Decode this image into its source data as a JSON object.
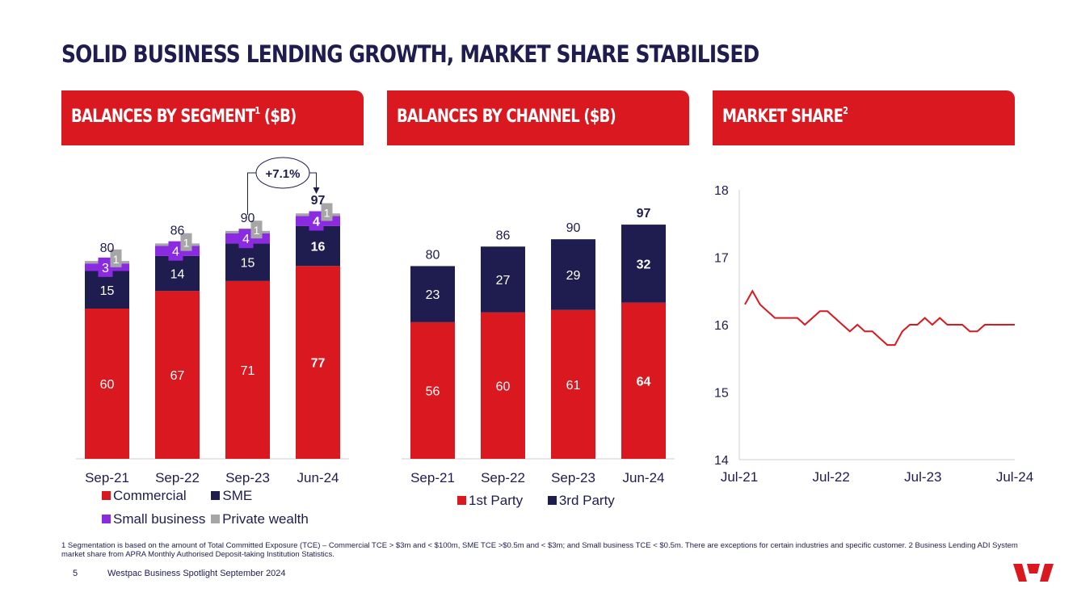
{
  "title": "SOLID BUSINESS LENDING GROWTH, MARKET SHARE STABILISED",
  "panels": {
    "segment": {
      "title": "BALANCES BY SEGMENT",
      "sup": "1",
      "unit": " ($B)"
    },
    "channel": {
      "title": "BALANCES BY CHANNEL ($B)"
    },
    "share": {
      "title": "MARKET SHARE",
      "sup": "2"
    }
  },
  "colors": {
    "red": "#d9181f",
    "navy": "#1f1c4f",
    "purple": "#8a2be2",
    "grey": "#a6a6a6"
  },
  "chart_data": [
    {
      "type": "bar",
      "stacked": true,
      "title": "BALANCES BY SEGMENT ($B)",
      "categories": [
        "Sep-21",
        "Sep-22",
        "Sep-23",
        "Jun-24"
      ],
      "series": [
        {
          "name": "Commercial",
          "color": "#d9181f",
          "values": [
            60,
            67,
            71,
            77
          ]
        },
        {
          "name": "SME",
          "color": "#1f1c4f",
          "values": [
            15,
            14,
            15,
            16
          ]
        },
        {
          "name": "Small business",
          "color": "#8a2be2",
          "values": [
            3,
            4,
            4,
            4
          ]
        },
        {
          "name": "Private wealth",
          "color": "#a6a6a6",
          "values": [
            1,
            1,
            1,
            1
          ]
        }
      ],
      "totals": [
        80,
        86,
        90,
        97
      ],
      "annotation": "+7.1%",
      "legend": [
        "Commercial",
        "SME",
        "Small business",
        "Private wealth"
      ]
    },
    {
      "type": "bar",
      "stacked": true,
      "title": "BALANCES BY CHANNEL ($B)",
      "categories": [
        "Sep-21",
        "Sep-22",
        "Sep-23",
        "Jun-24"
      ],
      "series": [
        {
          "name": "1st Party",
          "color": "#d9181f",
          "values": [
            56,
            60,
            61,
            64
          ]
        },
        {
          "name": "3rd Party",
          "color": "#1f1c4f",
          "values": [
            23,
            27,
            29,
            32
          ]
        }
      ],
      "totals": [
        80,
        86,
        90,
        97
      ],
      "legend": [
        "1st Party",
        "3rd Party"
      ]
    },
    {
      "type": "line",
      "title": "MARKET SHARE",
      "ylim": [
        14,
        18
      ],
      "yticks": [
        "18",
        "17",
        "16",
        "15",
        "14"
      ],
      "xticks": [
        "Jul-21",
        "Jul-22",
        "Jul-23",
        "Jul-24"
      ],
      "series": [
        {
          "name": "Market share",
          "color": "#d9181f",
          "values": [
            16.3,
            16.5,
            16.3,
            16.2,
            16.1,
            16.1,
            16.1,
            16.1,
            16.0,
            16.1,
            16.2,
            16.2,
            16.1,
            16.0,
            15.9,
            16.0,
            15.9,
            15.9,
            15.8,
            15.7,
            15.7,
            15.9,
            16.0,
            16.0,
            16.1,
            16.0,
            16.1,
            16.0,
            16.0,
            16.0,
            15.9,
            15.9,
            16.0,
            16.0,
            16.0,
            16.0,
            16.0
          ]
        }
      ]
    }
  ],
  "footnote": "1 Segmentation is based on the amount of Total Committed Exposure (TCE) – Commercial TCE > $3m and < $100m, SME TCE >$0.5m and < $3m; and Small business TCE < $0.5m. There are exceptions for certain industries and specific customer. 2 Business Lending ADI System market share from APRA Monthly Authorised Deposit-taking Institution Statistics.",
  "page_number": "5",
  "footer_text": "Westpac Business Spotlight September 2024"
}
